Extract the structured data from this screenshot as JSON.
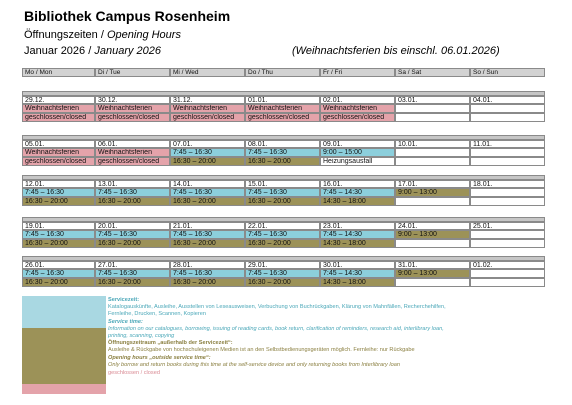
{
  "header": {
    "title": "Bibliothek Campus Rosenheim",
    "subtitle_de": "Öffnungszeiten /",
    "subtitle_en": "Opening Hours",
    "month_de": "Januar 2026 /",
    "month_en": "January 2026",
    "note": "(Weihnachtsferien bis einschl. 06.01.2026)"
  },
  "weekdays": [
    "Mo / Mon",
    "Di / Tue",
    "Mi / Wed",
    "Do / Thu",
    "Fr / Fri",
    "Sa / Sat",
    "So / Sun"
  ],
  "weeks": [
    {
      "days": [
        {
          "date": "29.12.",
          "lines": [
            "Weihnachtsferien",
            "geschlossen/closed"
          ]
        },
        {
          "date": "30.12.",
          "lines": [
            "Weihnachtsferien",
            "geschlossen/closed"
          ]
        },
        {
          "date": "31.12.",
          "lines": [
            "Weihnachtsferien",
            "geschlossen/closed"
          ]
        },
        {
          "date": "01.01.",
          "lines": [
            "Weihnachtsferien",
            "geschlossen/closed"
          ]
        },
        {
          "date": "02.01.",
          "lines": [
            "Weihnachtsferien",
            "geschlossen/closed"
          ]
        },
        {
          "date": "03.01.",
          "lines": []
        },
        {
          "date": "04.01.",
          "lines": []
        }
      ]
    },
    {
      "days": [
        {
          "date": "05.01.",
          "lines": [
            "Weihnachtsferien",
            "geschlossen/closed"
          ]
        },
        {
          "date": "06.01.",
          "lines": [
            "Weihnachtsferien",
            "geschlossen/closed"
          ]
        },
        {
          "date": "07.01.",
          "lines": [
            "7:45 – 16:30",
            "16:30 – 20:00"
          ]
        },
        {
          "date": "08.01.",
          "lines": [
            "7:45 – 16:30",
            "16:30 – 20:00"
          ]
        },
        {
          "date": "09.01.",
          "lines": [
            "9:00 – 15:00",
            "Heizungsausfall"
          ]
        },
        {
          "date": "10.01.",
          "lines": []
        },
        {
          "date": "11.01.",
          "lines": []
        }
      ]
    },
    {
      "days": [
        {
          "date": "12.01.",
          "lines": [
            "7:45 – 16:30",
            "16:30 – 20:00"
          ]
        },
        {
          "date": "13.01.",
          "lines": [
            "7:45 – 16:30",
            "16:30 – 20:00"
          ]
        },
        {
          "date": "14.01.",
          "lines": [
            "7:45 – 16:30",
            "16:30 – 20:00"
          ]
        },
        {
          "date": "15.01.",
          "lines": [
            "7:45 – 16:30",
            "16:30 – 20:00"
          ]
        },
        {
          "date": "16.01.",
          "lines": [
            "7:45 – 14:30",
            "14:30 – 18:00"
          ]
        },
        {
          "date": "17.01.",
          "lines": [
            "9:00 – 13:00"
          ]
        },
        {
          "date": "18.01.",
          "lines": []
        }
      ]
    },
    {
      "days": [
        {
          "date": "19.01.",
          "lines": [
            "7:45 – 16:30",
            "16:30 – 20:00"
          ]
        },
        {
          "date": "20.01.",
          "lines": [
            "7:45 – 16:30",
            "16:30 – 20:00"
          ]
        },
        {
          "date": "21.01.",
          "lines": [
            "7:45 – 16:30",
            "16:30 – 20:00"
          ]
        },
        {
          "date": "22.01.",
          "lines": [
            "7:45 – 16:30",
            "16:30 – 20:00"
          ]
        },
        {
          "date": "23.01.",
          "lines": [
            "7:45 – 14:30",
            "14:30 – 18:00"
          ]
        },
        {
          "date": "24.01.",
          "lines": [
            "9:00 – 13:00"
          ]
        },
        {
          "date": "25.01.",
          "lines": []
        }
      ]
    },
    {
      "days": [
        {
          "date": "26.01.",
          "lines": [
            "7:45 – 16:30",
            "16:30 – 20:00"
          ]
        },
        {
          "date": "27.01.",
          "lines": [
            "7:45 – 16:30",
            "16:30 – 20:00"
          ]
        },
        {
          "date": "28.01.",
          "lines": [
            "7:45 – 16:30",
            "16:30 – 20:00"
          ]
        },
        {
          "date": "29.01.",
          "lines": [
            "7:45 – 16:30",
            "16:30 – 20:00"
          ]
        },
        {
          "date": "30.01.",
          "lines": [
            "7:45 – 14:30",
            "14:30 – 18:00"
          ]
        },
        {
          "date": "31.01.",
          "lines": [
            "9:00 – 13:00"
          ]
        },
        {
          "date": "01.02.",
          "lines": []
        }
      ]
    }
  ],
  "legend": {
    "service_de_title": "Servicezeit:",
    "service_de_text": [
      "Katalogauskünfte, Ausleihe, Ausstellen von Leseausweisen, Verbuchung von Buchrückgaben, Klärung von Mahnfällen, Recherchehilfen,",
      "Fernleihe, Drucken, Scannen, Kopieren"
    ],
    "service_en_title": "Service time:",
    "service_en_text": [
      "Information on our catalogues, borrowing, issuing of reading cards, book return, clarification of reminders, research aid, interlibrary loan,",
      "printing, scanning, copying"
    ],
    "outside_de_title": "Öffnungszeitraum „außerhalb der Servicezeit“:",
    "outside_de_text": [
      "Ausleihe & Rückgabe von hochschuleigenen Medien ist an den Selbstbedienungsgeräten möglich. Fernleihe: nur Rückgabe"
    ],
    "outside_en_title": "Opening hours „outside service time“:",
    "outside_en_text": [
      "Only borrow and return books during this time at the self-service device and only returning books from Interlibrary loan"
    ],
    "closed": "geschlossen / closed"
  }
}
